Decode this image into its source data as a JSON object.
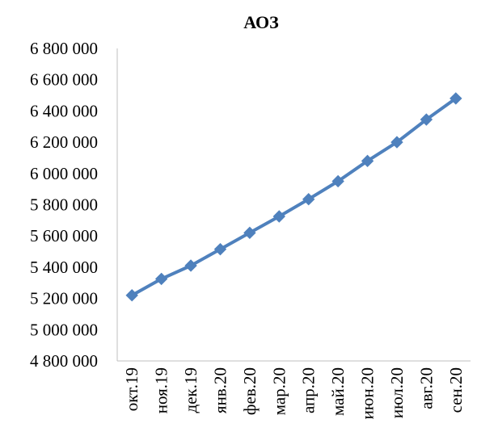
{
  "chart_data": {
    "type": "line",
    "title": "АОЗ",
    "xlabel": "",
    "ylabel": "",
    "categories": [
      "окт.19",
      "ноя.19",
      "дек.19",
      "янв.20",
      "фев.20",
      "мар.20",
      "апр.20",
      "май.20",
      "июн.20",
      "июл.20",
      "авг.20",
      "сен.20"
    ],
    "series": [
      {
        "values": [
          5220000,
          5325000,
          5410000,
          5515000,
          5620000,
          5725000,
          5835000,
          5950000,
          6080000,
          6200000,
          6345000,
          6480000
        ],
        "color": "#4f81bd",
        "marker": "diamond"
      }
    ],
    "ylim": [
      4800000,
      6800000
    ],
    "yticks": [
      4800000,
      5000000,
      5200000,
      5400000,
      5600000,
      5800000,
      6000000,
      6200000,
      6400000,
      6600000,
      6800000
    ],
    "ytick_labels": [
      "4 800 000",
      "5 000 000",
      "5 200 000",
      "5 400 000",
      "5 600 000",
      "5 800 000",
      "6 000 000",
      "6 200 000",
      "6 400 000",
      "6 600 000",
      "6 800 000"
    ],
    "grid": false,
    "legend": "none"
  }
}
